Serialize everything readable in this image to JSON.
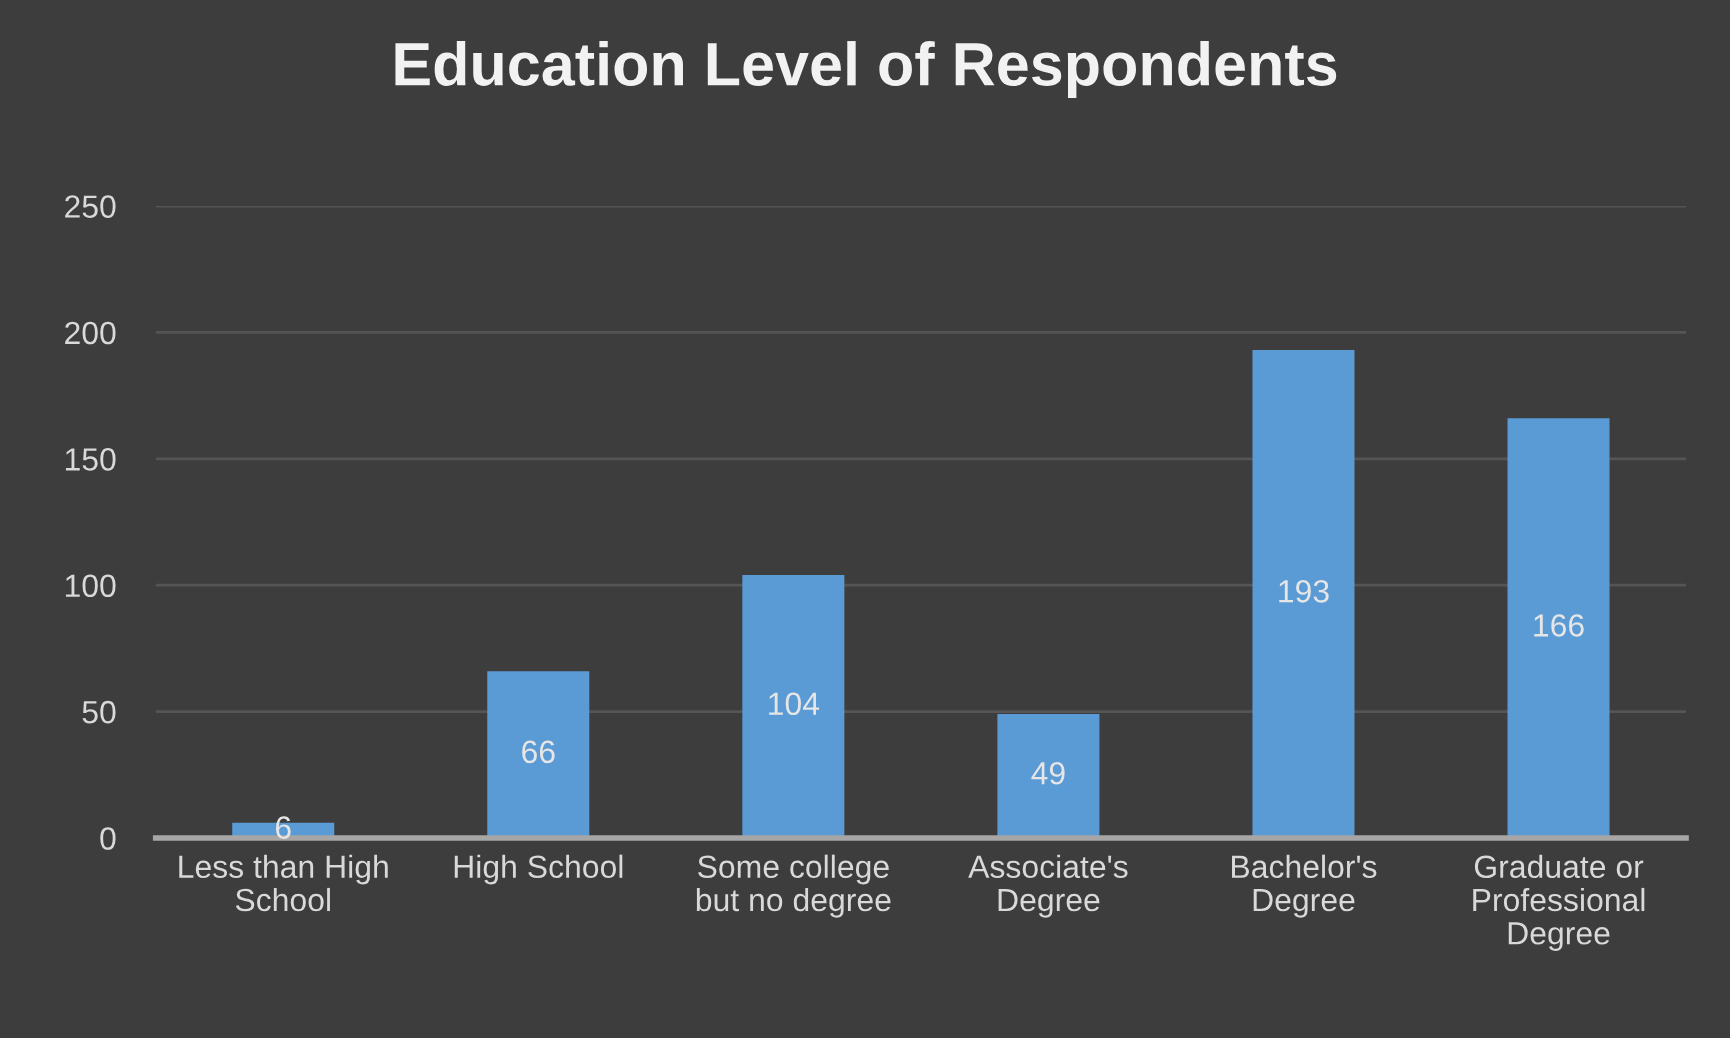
{
  "chart_data": {
    "type": "bar",
    "title": "Education Level of Respondents",
    "categories": [
      "Less than High School",
      "High School",
      "Some college but no degree",
      "Associate's Degree",
      "Bachelor's Degree",
      "Graduate or Professional Degree"
    ],
    "values": [
      6,
      66,
      104,
      49,
      193,
      166
    ],
    "color": "#5b9bd5",
    "ylim": [
      0,
      250
    ],
    "yticks": [
      0,
      50,
      100,
      150,
      200,
      250
    ],
    "grid": "y",
    "data_labels": true
  }
}
